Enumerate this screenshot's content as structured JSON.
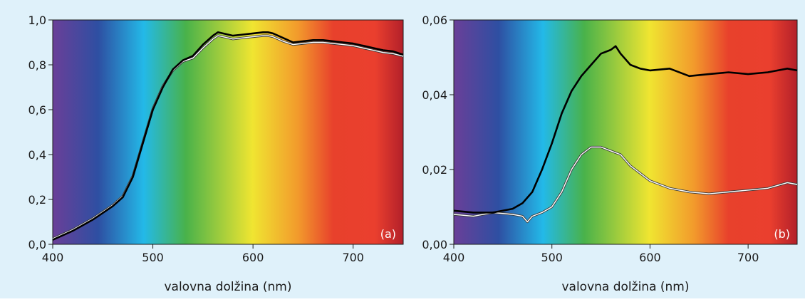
{
  "spectrum_colors": [
    "#6a3f98",
    "#2e4fa2",
    "#23b9e8",
    "#49b24a",
    "#f0e531",
    "#f29a2c",
    "#e8412c",
    "#ea3f2e",
    "#b3202a"
  ],
  "chart_data": [
    {
      "type": "line",
      "tag": "(a)",
      "xlabel": "valovna dolžina (nm)",
      "ylabel": "",
      "xlim": [
        400,
        750
      ],
      "ylim": [
        0,
        1.0
      ],
      "x_ticks": [
        400,
        500,
        600,
        700
      ],
      "y_ticks": [
        0.0,
        0.2,
        0.4,
        0.6,
        0.8,
        1.0
      ],
      "x_tick_labels": [
        "400",
        "500",
        "600",
        "700"
      ],
      "y_tick_labels": [
        "0,0",
        "0,2",
        "0,4",
        "0,6",
        "0,8",
        "1,0"
      ],
      "grid": false,
      "background": "visible spectrum gradient",
      "series": [
        {
          "color": "#000000",
          "x": [
            400,
            420,
            440,
            460,
            470,
            480,
            490,
            500,
            510,
            520,
            530,
            540,
            550,
            560,
            565,
            570,
            580,
            590,
            600,
            610,
            615,
            620,
            630,
            640,
            650,
            660,
            670,
            680,
            690,
            700,
            710,
            720,
            730,
            740,
            750
          ],
          "y": [
            0.02,
            0.06,
            0.11,
            0.17,
            0.21,
            0.3,
            0.45,
            0.6,
            0.7,
            0.78,
            0.82,
            0.84,
            0.89,
            0.93,
            0.945,
            0.94,
            0.93,
            0.935,
            0.94,
            0.945,
            0.945,
            0.94,
            0.92,
            0.9,
            0.905,
            0.91,
            0.91,
            0.905,
            0.9,
            0.895,
            0.885,
            0.875,
            0.865,
            0.86,
            0.845
          ]
        },
        {
          "color": "#ffffff",
          "x": [
            400,
            420,
            440,
            460,
            470,
            480,
            490,
            500,
            510,
            520,
            530,
            540,
            550,
            560,
            565,
            570,
            580,
            590,
            600,
            610,
            615,
            620,
            630,
            640,
            650,
            660,
            670,
            680,
            690,
            700,
            710,
            720,
            730,
            740,
            750
          ],
          "y": [
            0.025,
            0.065,
            0.115,
            0.175,
            0.215,
            0.305,
            0.455,
            0.605,
            0.705,
            0.775,
            0.815,
            0.83,
            0.875,
            0.915,
            0.93,
            0.925,
            0.915,
            0.92,
            0.925,
            0.93,
            0.93,
            0.925,
            0.905,
            0.89,
            0.895,
            0.9,
            0.9,
            0.895,
            0.89,
            0.885,
            0.875,
            0.865,
            0.855,
            0.85,
            0.838
          ]
        }
      ]
    },
    {
      "type": "line",
      "tag": "(b)",
      "xlabel": "valovna dolžina (nm)",
      "ylabel": "",
      "xlim": [
        400,
        750
      ],
      "ylim": [
        0,
        0.06
      ],
      "x_ticks": [
        400,
        500,
        600,
        700
      ],
      "y_ticks": [
        0.0,
        0.02,
        0.04,
        0.06
      ],
      "x_tick_labels": [
        "400",
        "500",
        "600",
        "700"
      ],
      "y_tick_labels": [
        "0,00",
        "0,02",
        "0,04",
        "0,06"
      ],
      "grid": false,
      "background": "visible spectrum gradient",
      "series": [
        {
          "color": "#000000",
          "x": [
            400,
            420,
            440,
            460,
            470,
            480,
            490,
            500,
            510,
            520,
            530,
            540,
            550,
            560,
            565,
            570,
            580,
            590,
            600,
            620,
            640,
            660,
            680,
            700,
            720,
            740,
            750
          ],
          "y": [
            0.009,
            0.0085,
            0.0085,
            0.0095,
            0.011,
            0.014,
            0.02,
            0.027,
            0.035,
            0.041,
            0.045,
            0.048,
            0.051,
            0.052,
            0.053,
            0.051,
            0.048,
            0.047,
            0.0465,
            0.047,
            0.045,
            0.0455,
            0.046,
            0.0455,
            0.046,
            0.047,
            0.0465
          ]
        },
        {
          "color": "#ffffff",
          "x": [
            400,
            420,
            440,
            460,
            470,
            475,
            480,
            490,
            500,
            510,
            520,
            530,
            540,
            550,
            560,
            570,
            580,
            590,
            600,
            620,
            640,
            660,
            680,
            700,
            720,
            740,
            750
          ],
          "y": [
            0.008,
            0.0075,
            0.0085,
            0.008,
            0.0075,
            0.006,
            0.0075,
            0.0085,
            0.01,
            0.014,
            0.02,
            0.024,
            0.026,
            0.026,
            0.025,
            0.024,
            0.021,
            0.019,
            0.017,
            0.015,
            0.014,
            0.0135,
            0.014,
            0.0145,
            0.015,
            0.0165,
            0.016
          ]
        }
      ]
    }
  ]
}
